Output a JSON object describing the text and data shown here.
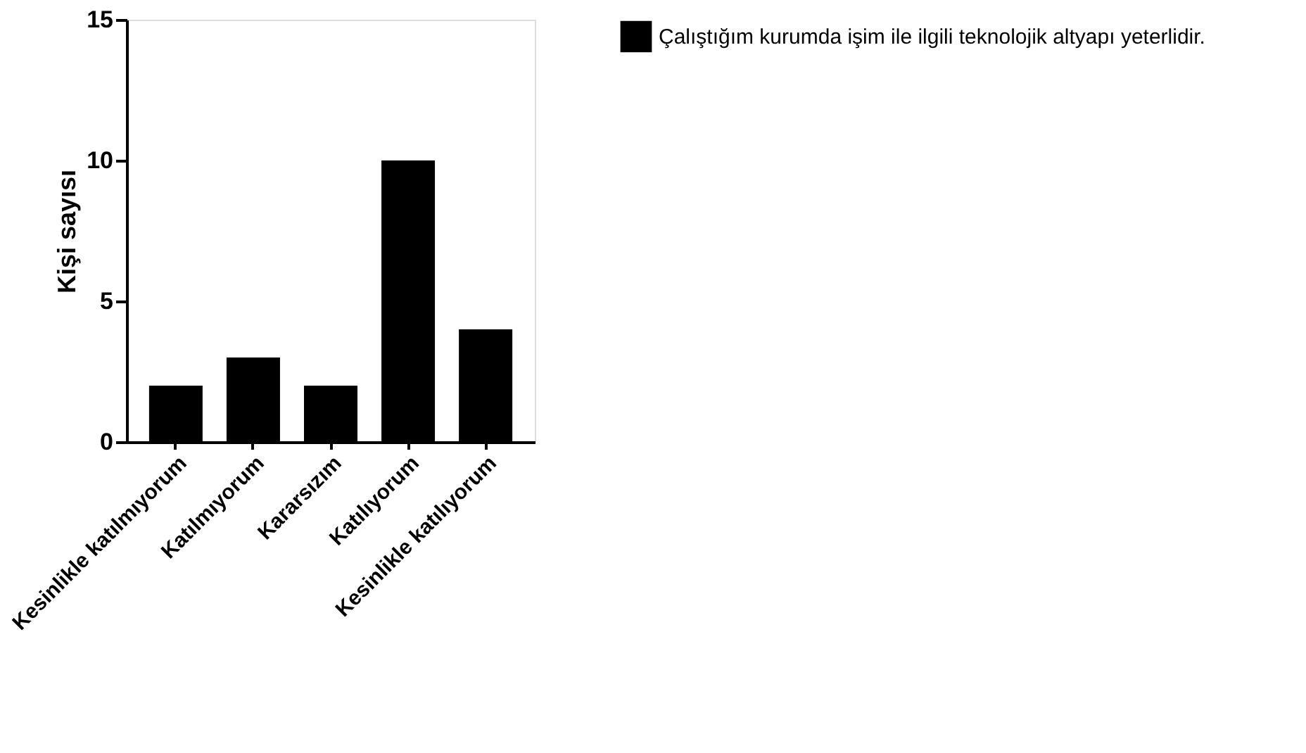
{
  "chart_data": {
    "type": "bar",
    "ylabel": "Kişi sayısı",
    "categories": [
      "Kesinlikle katılmıyorum",
      "Katılmıyorum",
      "Kararsızım",
      "Katılıyorum",
      "Kesinlikle katılıyorum"
    ],
    "series": [
      {
        "name": "Çalıştığım kurumda işim ile ilgili teknolojik altyapı yeterlidir.",
        "color": "#000000",
        "values": [
          2,
          3,
          2,
          10,
          4
        ]
      }
    ],
    "ylim": [
      0,
      15
    ],
    "yticks": [
      0,
      5,
      10,
      15
    ],
    "grid": false,
    "legend": "top right"
  }
}
